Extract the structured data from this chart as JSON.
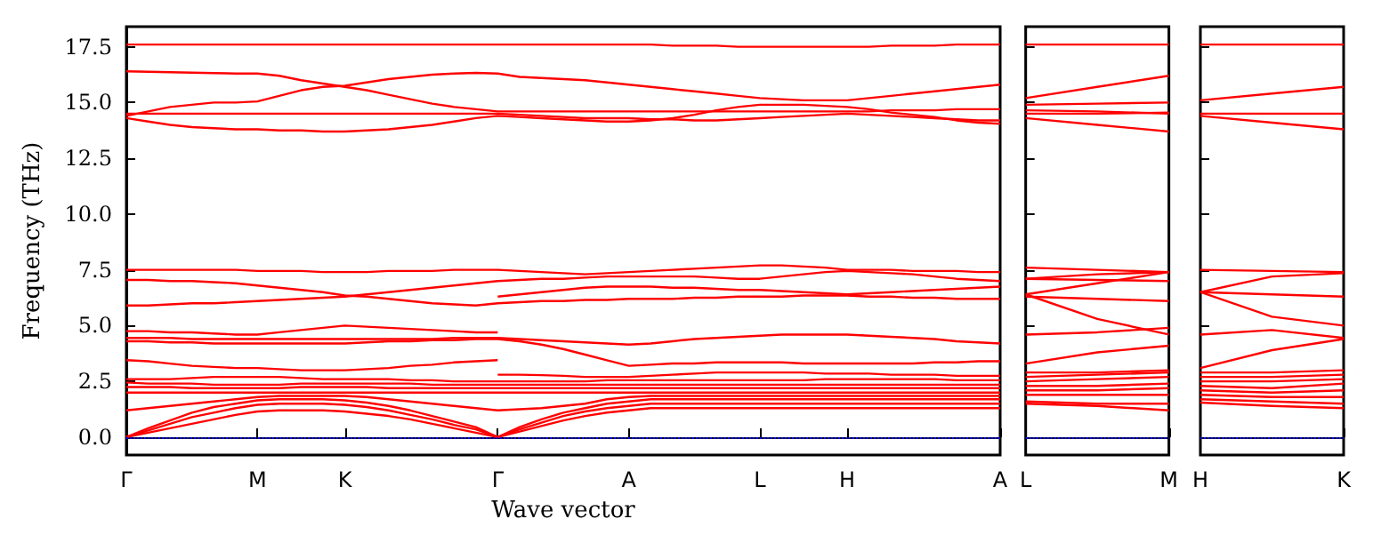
{
  "chart_data": [
    {
      "type": "line",
      "xlabel": "Wave vector",
      "ylabel": "Frequency (THz)",
      "categories": [
        "Γ",
        null,
        null,
        null,
        null,
        null,
        "M",
        null,
        null,
        null,
        "K",
        null,
        null,
        null,
        null,
        null,
        null,
        "Γ",
        null,
        null,
        null,
        null,
        null,
        "A",
        null,
        null,
        null,
        null,
        null,
        "L",
        null,
        null,
        null,
        "H",
        null,
        null,
        null,
        null,
        null,
        null,
        "A"
      ],
      "ylim": [
        -0.8,
        18.4
      ],
      "yticks": [
        {
          "value": 0,
          "label": "0.0"
        },
        {
          "value": 2.5,
          "label": "2.5"
        },
        {
          "value": 5,
          "label": "5.0"
        },
        {
          "value": 7.5,
          "label": "7.5"
        },
        {
          "value": 10,
          "label": "10.0"
        },
        {
          "value": 12.5,
          "label": "12.5"
        },
        {
          "value": 15,
          "label": "15.0"
        },
        {
          "value": 17.5,
          "label": "17.5"
        }
      ],
      "grid": false,
      "marker": "none",
      "line_style": "solid",
      "ref_lines": [
        {
          "axis": "y",
          "value": 0,
          "color": "#0000ff",
          "line_style": "dotted"
        }
      ],
      "series": [
        {
          "color": "#ff0000",
          "values": [
            17.6,
            17.6,
            17.6,
            17.6,
            17.6,
            17.6,
            17.6,
            17.6,
            17.6,
            17.6,
            17.6,
            17.6,
            17.6,
            17.6,
            17.6,
            17.6,
            17.6,
            17.6,
            17.6,
            17.6,
            17.6,
            17.6,
            17.6,
            17.6,
            17.6,
            17.55,
            17.55,
            17.55,
            17.5,
            17.5,
            17.5,
            17.5,
            17.5,
            17.5,
            17.5,
            17.55,
            17.55,
            17.55,
            17.6,
            17.6,
            17.6
          ]
        },
        {
          "color": "#ff0000",
          "values": [
            14.4,
            14.6,
            14.8,
            14.9,
            15.0,
            15.0,
            15.05,
            15.3,
            15.55,
            15.7,
            15.75,
            15.9,
            16.05,
            16.15,
            16.25,
            16.3,
            16.33,
            16.3,
            16.15,
            16.1,
            16.05,
            16.0,
            15.9,
            15.8,
            15.7,
            15.6,
            15.5,
            15.4,
            15.3,
            15.2,
            15.15,
            15.1,
            15.1,
            15.1,
            15.2,
            15.3,
            15.4,
            15.5,
            15.6,
            15.7,
            15.8
          ]
        },
        {
          "color": "#ff0000",
          "values": [
            16.4,
            16.38,
            16.36,
            16.34,
            16.32,
            16.3,
            16.3,
            16.2,
            16.0,
            15.85,
            15.7,
            15.55,
            15.35,
            15.15,
            14.95,
            14.8,
            14.7,
            14.6,
            14.6,
            14.6,
            14.6,
            14.6,
            14.6,
            14.6,
            14.6,
            14.6,
            14.6,
            14.6,
            14.6,
            14.6,
            14.6,
            14.6,
            14.6,
            14.6,
            14.6,
            14.65,
            14.65,
            14.65,
            14.7,
            14.7,
            14.7
          ]
        },
        {
          "color": "#ff0000",
          "values": [
            14.5,
            14.5,
            14.5,
            14.5,
            14.5,
            14.5,
            14.5,
            14.5,
            14.5,
            14.5,
            14.5,
            14.5,
            14.5,
            14.5,
            14.5,
            14.5,
            14.5,
            14.5,
            14.45,
            14.4,
            14.35,
            14.3,
            14.3,
            14.3,
            14.25,
            14.25,
            14.2,
            14.2,
            14.25,
            14.3,
            14.35,
            14.4,
            14.45,
            14.5,
            14.45,
            14.4,
            14.35,
            14.3,
            14.25,
            14.2,
            14.2
          ]
        },
        {
          "color": "#ff0000",
          "values": [
            14.3,
            14.15,
            14.0,
            13.9,
            13.85,
            13.8,
            13.8,
            13.75,
            13.75,
            13.7,
            13.7,
            13.75,
            13.8,
            13.9,
            14.0,
            14.15,
            14.3,
            14.4,
            14.35,
            14.3,
            14.25,
            14.2,
            14.15,
            14.15,
            14.2,
            14.3,
            14.45,
            14.65,
            14.8,
            14.9,
            14.9,
            14.9,
            14.85,
            14.8,
            14.7,
            14.55,
            14.45,
            14.35,
            14.2,
            14.1,
            14.05
          ]
        },
        {
          "color": "#ff0000",
          "values": [
            7.5,
            7.5,
            7.5,
            7.5,
            7.5,
            7.5,
            7.45,
            7.45,
            7.45,
            7.4,
            7.4,
            7.4,
            7.45,
            7.45,
            7.45,
            7.5,
            7.5,
            7.5,
            7.45,
            7.4,
            7.35,
            7.3,
            7.35,
            7.4,
            7.45,
            7.5,
            7.55,
            7.6,
            7.65,
            7.7,
            7.7,
            7.65,
            7.6,
            7.5,
            7.5,
            7.5,
            7.45,
            7.45,
            7.45,
            7.4,
            7.4
          ]
        },
        {
          "color": "#ff0000",
          "values": [
            5.9,
            5.9,
            5.95,
            6.0,
            6.0,
            6.05,
            6.1,
            6.15,
            6.2,
            6.25,
            6.3,
            6.4,
            6.5,
            6.6,
            6.7,
            6.8,
            6.9,
            7.0,
            7.05,
            7.1,
            7.1,
            7.15,
            7.2,
            7.2,
            7.2,
            7.2,
            7.2,
            7.15,
            7.1,
            7.1,
            7.2,
            7.3,
            7.4,
            7.45,
            7.4,
            7.35,
            7.3,
            7.2,
            7.1,
            7.05,
            7.0
          ]
        },
        {
          "color": "#ff0000",
          "values": [
            7.05,
            7.05,
            7.0,
            7.0,
            6.95,
            6.9,
            6.8,
            6.7,
            6.6,
            6.5,
            6.35,
            6.3,
            6.2,
            6.1,
            6.0,
            5.95,
            5.9,
            6.0,
            6.05,
            6.1,
            6.1,
            6.15,
            6.15,
            6.2,
            6.2,
            6.2,
            6.25,
            6.25,
            6.3,
            6.3,
            6.3,
            6.35,
            6.35,
            6.35,
            6.3,
            6.3,
            6.25,
            6.25,
            6.2,
            6.2,
            6.2
          ]
        },
        {
          "color": "#ff0000",
          "values": [
            null,
            null,
            null,
            null,
            null,
            null,
            null,
            null,
            null,
            null,
            null,
            null,
            null,
            null,
            null,
            null,
            null,
            6.3,
            6.4,
            6.5,
            6.6,
            6.7,
            6.75,
            6.75,
            6.75,
            6.7,
            6.7,
            6.65,
            6.6,
            6.6,
            6.55,
            6.5,
            6.45,
            6.4,
            6.45,
            6.5,
            6.55,
            6.6,
            6.65,
            6.7,
            6.75
          ]
        },
        {
          "color": "#ff0000",
          "values": [
            4.75,
            4.75,
            4.7,
            4.7,
            4.65,
            4.6,
            4.6,
            4.7,
            4.8,
            4.9,
            5.0,
            4.95,
            4.9,
            4.85,
            4.8,
            4.75,
            4.7,
            4.7,
            null,
            null,
            null,
            null,
            null,
            null,
            null,
            null,
            null,
            null,
            null,
            null,
            null,
            null,
            null,
            null,
            null,
            null,
            null,
            null,
            null,
            null,
            null
          ]
        },
        {
          "color": "#ff0000",
          "values": [
            4.45,
            4.45,
            4.45,
            4.4,
            4.4,
            4.4,
            4.4,
            4.4,
            4.4,
            4.4,
            4.4,
            4.4,
            4.4,
            4.4,
            4.4,
            4.45,
            4.45,
            4.45,
            4.4,
            4.35,
            4.3,
            4.25,
            4.2,
            4.15,
            4.2,
            4.3,
            4.4,
            4.45,
            4.5,
            4.55,
            4.6,
            4.6,
            4.6,
            4.6,
            4.55,
            4.5,
            4.45,
            4.4,
            4.3,
            4.25,
            4.2
          ]
        },
        {
          "color": "#ff0000",
          "values": [
            4.3,
            4.3,
            4.25,
            4.25,
            4.2,
            4.2,
            4.2,
            4.2,
            4.2,
            4.2,
            4.2,
            4.25,
            4.3,
            4.3,
            4.35,
            4.35,
            4.4,
            4.4,
            4.3,
            4.15,
            3.95,
            3.7,
            3.45,
            3.2,
            3.25,
            3.3,
            3.3,
            3.35,
            3.35,
            3.35,
            3.35,
            3.3,
            3.3,
            3.3,
            3.3,
            3.3,
            3.3,
            3.35,
            3.35,
            3.4,
            3.4
          ]
        },
        {
          "color": "#ff0000",
          "values": [
            3.45,
            3.4,
            3.3,
            3.2,
            3.15,
            3.1,
            3.1,
            3.05,
            3.0,
            3.0,
            3.0,
            3.05,
            3.1,
            3.2,
            3.25,
            3.35,
            3.4,
            3.45,
            null,
            null,
            null,
            null,
            null,
            null,
            null,
            null,
            null,
            null,
            null,
            null,
            null,
            null,
            null,
            null,
            null,
            null,
            null,
            null,
            null,
            null,
            null
          ]
        },
        {
          "color": "#ff0000",
          "values": [
            null,
            null,
            null,
            null,
            null,
            null,
            null,
            null,
            null,
            null,
            null,
            null,
            null,
            null,
            null,
            null,
            null,
            2.8,
            2.8,
            2.78,
            2.75,
            2.7,
            2.7,
            2.7,
            2.75,
            2.8,
            2.85,
            2.9,
            2.9,
            2.9,
            2.9,
            2.9,
            2.85,
            2.85,
            2.85,
            2.8,
            2.8,
            2.8,
            2.75,
            2.75,
            2.75
          ]
        },
        {
          "color": "#ff0000",
          "values": [
            2.6,
            2.6,
            2.6,
            2.65,
            2.7,
            2.7,
            2.7,
            2.7,
            2.65,
            2.6,
            2.6,
            2.6,
            2.6,
            2.55,
            2.55,
            2.5,
            2.5,
            2.5,
            2.5,
            2.5,
            2.5,
            2.5,
            2.55,
            2.55,
            2.55,
            2.55,
            2.55,
            2.55,
            2.55,
            2.55,
            2.55,
            2.55,
            2.6,
            2.6,
            2.6,
            2.6,
            2.6,
            2.6,
            2.55,
            2.55,
            2.55
          ]
        },
        {
          "color": "#ff0000",
          "values": [
            2.45,
            2.4,
            2.4,
            2.4,
            2.35,
            2.35,
            2.35,
            2.35,
            2.4,
            2.4,
            2.4,
            2.4,
            2.4,
            2.4,
            2.35,
            2.35,
            2.35,
            2.35,
            2.35,
            2.35,
            2.35,
            2.35,
            2.35,
            2.35,
            2.35,
            2.35,
            2.35,
            2.35,
            2.35,
            2.35,
            2.35,
            2.35,
            2.35,
            2.35,
            2.35,
            2.35,
            2.35,
            2.35,
            2.35,
            2.35,
            2.35
          ]
        },
        {
          "color": "#ff0000",
          "values": [
            2.25,
            2.25,
            2.25,
            2.2,
            2.2,
            2.2,
            2.2,
            2.2,
            2.25,
            2.25,
            2.25,
            2.25,
            2.2,
            2.2,
            2.2,
            2.2,
            2.2,
            2.2,
            2.2,
            2.2,
            2.2,
            2.2,
            2.2,
            2.2,
            2.2,
            2.2,
            2.2,
            2.2,
            2.2,
            2.2,
            2.2,
            2.2,
            2.2,
            2.2,
            2.2,
            2.2,
            2.2,
            2.2,
            2.2,
            2.2,
            2.2
          ]
        },
        {
          "color": "#ff0000",
          "values": [
            2.0,
            2.0,
            2.0,
            2.0,
            2.0,
            2.0,
            2.0,
            2.0,
            2.0,
            2.0,
            2.0,
            2.0,
            2.0,
            2.0,
            2.0,
            2.0,
            2.0,
            2.0,
            2.0,
            2.0,
            2.0,
            2.0,
            2.0,
            2.0,
            2.0,
            2.0,
            2.0,
            2.0,
            2.0,
            2.0,
            2.0,
            2.0,
            2.0,
            2.0,
            2.0,
            2.0,
            2.0,
            2.0,
            2.0,
            2.0,
            2.0
          ]
        },
        {
          "color": "#ff0000",
          "values": [
            1.2,
            1.3,
            1.4,
            1.5,
            1.6,
            1.7,
            1.8,
            1.85,
            1.85,
            1.85,
            1.85,
            1.8,
            1.7,
            1.6,
            1.5,
            1.4,
            1.3,
            1.2,
            1.25,
            1.3,
            1.4,
            1.5,
            1.7,
            1.8,
            1.85,
            1.85,
            1.85,
            1.85,
            1.85,
            1.85,
            1.85,
            1.85,
            1.85,
            1.85,
            1.85,
            1.85,
            1.85,
            1.85,
            1.85,
            1.85,
            1.85
          ]
        },
        {
          "color": "#ff0000",
          "values": [
            0,
            0.2,
            0.4,
            0.6,
            0.8,
            1.0,
            1.15,
            1.2,
            1.2,
            1.2,
            1.15,
            1.05,
            0.95,
            0.8,
            0.6,
            0.4,
            0.2,
            0,
            0.25,
            0.5,
            0.75,
            0.95,
            1.1,
            1.2,
            1.3,
            1.3,
            1.3,
            1.3,
            1.3,
            1.3,
            1.3,
            1.3,
            1.3,
            1.3,
            1.3,
            1.3,
            1.3,
            1.3,
            1.3,
            1.3,
            1.3
          ]
        },
        {
          "color": "#ff0000",
          "values": [
            0,
            0.3,
            0.6,
            0.9,
            1.1,
            1.3,
            1.45,
            1.5,
            1.5,
            1.5,
            1.45,
            1.35,
            1.2,
            1.0,
            0.8,
            0.55,
            0.35,
            0,
            0.35,
            0.65,
            0.95,
            1.15,
            1.3,
            1.4,
            1.5,
            1.5,
            1.5,
            1.5,
            1.5,
            1.5,
            1.5,
            1.5,
            1.5,
            1.5,
            1.5,
            1.5,
            1.5,
            1.5,
            1.5,
            1.5,
            1.5
          ]
        },
        {
          "color": "#ff0000",
          "values": [
            0,
            0.4,
            0.75,
            1.1,
            1.35,
            1.5,
            1.65,
            1.7,
            1.7,
            1.7,
            1.65,
            1.55,
            1.4,
            1.2,
            0.95,
            0.7,
            0.45,
            0,
            0.45,
            0.8,
            1.1,
            1.3,
            1.5,
            1.6,
            1.7,
            1.7,
            1.7,
            1.7,
            1.7,
            1.7,
            1.7,
            1.7,
            1.7,
            1.7,
            1.7,
            1.7,
            1.7,
            1.7,
            1.7,
            1.7,
            1.7
          ]
        }
      ]
    },
    {
      "type": "line",
      "categories": [
        "L",
        null,
        "M"
      ],
      "ylim": [
        -0.8,
        18.4
      ],
      "yticks": [
        {
          "value": 0,
          "label": null
        },
        {
          "value": 2.5,
          "label": null
        },
        {
          "value": 5,
          "label": null
        },
        {
          "value": 7.5,
          "label": null
        },
        {
          "value": 10,
          "label": null
        },
        {
          "value": 12.5,
          "label": null
        },
        {
          "value": 15,
          "label": null
        },
        {
          "value": 17.5,
          "label": null
        }
      ],
      "tick_labels": "x",
      "grid": false,
      "marker": "none",
      "line_style": "solid",
      "ref_lines": [
        {
          "axis": "y",
          "value": 0,
          "color": "#0000ff",
          "line_style": "dotted"
        }
      ],
      "series": [
        {
          "color": "#ff0000",
          "values": [
            17.6,
            17.6,
            17.6
          ]
        },
        {
          "color": "#ff0000",
          "values": [
            15.2,
            15.7,
            16.2
          ]
        },
        {
          "color": "#ff0000",
          "values": [
            14.9,
            14.95,
            15.0
          ]
        },
        {
          "color": "#ff0000",
          "values": [
            14.65,
            14.6,
            14.5
          ]
        },
        {
          "color": "#ff0000",
          "values": [
            14.5,
            14.5,
            14.55
          ]
        },
        {
          "color": "#ff0000",
          "values": [
            14.3,
            14.0,
            13.7
          ]
        },
        {
          "color": "#ff0000",
          "values": [
            7.6,
            7.5,
            7.4
          ]
        },
        {
          "color": "#ff0000",
          "values": [
            7.1,
            7.3,
            7.4
          ]
        },
        {
          "color": "#ff0000",
          "values": [
            7.1,
            7.05,
            7.0
          ]
        },
        {
          "color": "#ff0000",
          "values": [
            6.4,
            6.9,
            7.4
          ]
        },
        {
          "color": "#ff0000",
          "values": [
            6.4,
            5.3,
            4.6
          ]
        },
        {
          "color": "#ff0000",
          "values": [
            6.3,
            6.2,
            6.1
          ]
        },
        {
          "color": "#ff0000",
          "values": [
            4.6,
            4.7,
            4.9
          ]
        },
        {
          "color": "#ff0000",
          "values": [
            3.3,
            3.8,
            4.1
          ]
        },
        {
          "color": "#ff0000",
          "values": [
            2.9,
            2.9,
            3.0
          ]
        },
        {
          "color": "#ff0000",
          "values": [
            2.7,
            2.8,
            2.9
          ]
        },
        {
          "color": "#ff0000",
          "values": [
            2.5,
            2.6,
            2.7
          ]
        },
        {
          "color": "#ff0000",
          "values": [
            2.3,
            2.3,
            2.4
          ]
        },
        {
          "color": "#ff0000",
          "values": [
            2.1,
            2.1,
            2.2
          ]
        },
        {
          "color": "#ff0000",
          "values": [
            1.9,
            1.9,
            1.9
          ]
        },
        {
          "color": "#ff0000",
          "values": [
            1.6,
            1.5,
            1.5
          ]
        },
        {
          "color": "#ff0000",
          "values": [
            1.5,
            1.4,
            1.2
          ]
        }
      ]
    },
    {
      "type": "line",
      "categories": [
        "H",
        null,
        "K"
      ],
      "ylim": [
        -0.8,
        18.4
      ],
      "yticks": [
        {
          "value": 0,
          "label": null
        },
        {
          "value": 2.5,
          "label": null
        },
        {
          "value": 5,
          "label": null
        },
        {
          "value": 7.5,
          "label": null
        },
        {
          "value": 10,
          "label": null
        },
        {
          "value": 12.5,
          "label": null
        },
        {
          "value": 15,
          "label": null
        },
        {
          "value": 17.5,
          "label": null
        }
      ],
      "tick_labels": "x",
      "grid": false,
      "marker": "none",
      "line_style": "solid",
      "ref_lines": [
        {
          "axis": "y",
          "value": 0,
          "color": "#0000ff",
          "line_style": "dotted"
        }
      ],
      "series": [
        {
          "color": "#ff0000",
          "values": [
            17.6,
            17.6,
            17.6
          ]
        },
        {
          "color": "#ff0000",
          "values": [
            15.1,
            15.4,
            15.7
          ]
        },
        {
          "color": "#ff0000",
          "values": [
            14.5,
            14.5,
            14.5
          ]
        },
        {
          "color": "#ff0000",
          "values": [
            14.4,
            14.1,
            13.8
          ]
        },
        {
          "color": "#ff0000",
          "values": [
            7.5,
            7.45,
            7.4
          ]
        },
        {
          "color": "#ff0000",
          "values": [
            6.5,
            7.2,
            7.35
          ]
        },
        {
          "color": "#ff0000",
          "values": [
            6.5,
            6.4,
            6.3
          ]
        },
        {
          "color": "#ff0000",
          "values": [
            6.5,
            5.4,
            5.0
          ]
        },
        {
          "color": "#ff0000",
          "values": [
            4.6,
            4.8,
            4.45
          ]
        },
        {
          "color": "#ff0000",
          "values": [
            3.1,
            3.9,
            4.4
          ]
        },
        {
          "color": "#ff0000",
          "values": [
            2.9,
            2.9,
            3.0
          ]
        },
        {
          "color": "#ff0000",
          "values": [
            2.7,
            2.7,
            2.8
          ]
        },
        {
          "color": "#ff0000",
          "values": [
            2.5,
            2.5,
            2.6
          ]
        },
        {
          "color": "#ff0000",
          "values": [
            2.3,
            2.2,
            2.4
          ]
        },
        {
          "color": "#ff0000",
          "values": [
            2.1,
            2.0,
            2.1
          ]
        },
        {
          "color": "#ff0000",
          "values": [
            1.9,
            1.8,
            1.8
          ]
        },
        {
          "color": "#ff0000",
          "values": [
            1.7,
            1.6,
            1.5
          ]
        },
        {
          "color": "#ff0000",
          "values": [
            1.55,
            1.4,
            1.3
          ]
        }
      ]
    }
  ]
}
